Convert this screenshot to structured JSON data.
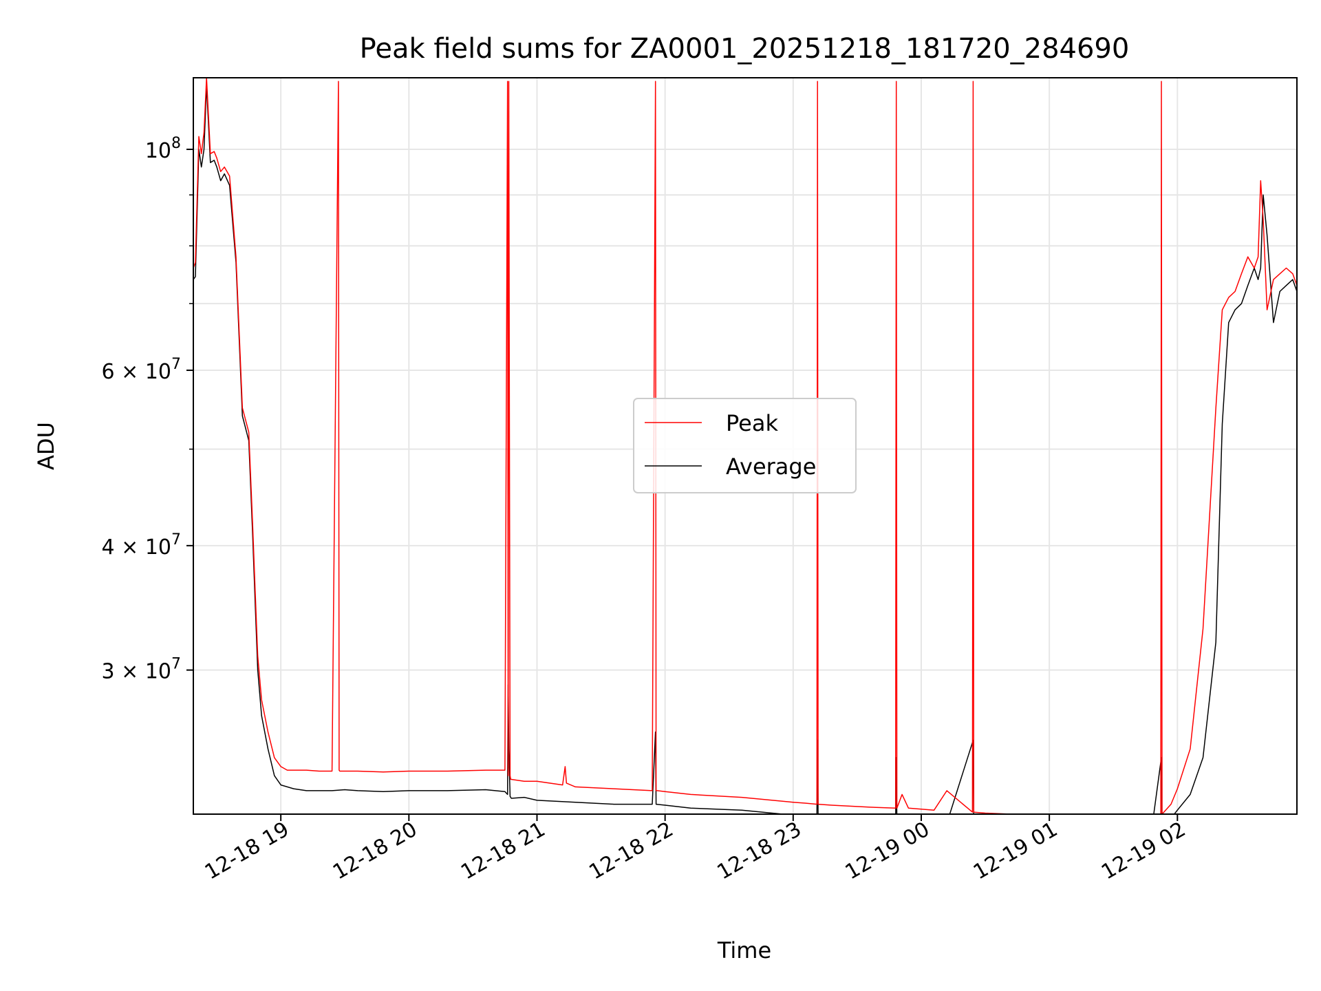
{
  "chart_data": {
    "type": "line",
    "title": "Peak field sums for ZA0001_20251218_181720_284690",
    "xlabel": "Time",
    "ylabel": "ADU",
    "yscale": "log",
    "ylim": [
      21500000,
      118000000
    ],
    "xlim_hours": [
      18.317,
      26.933
    ],
    "grid": true,
    "legend_location": "center",
    "x_ticks": [
      {
        "hour": 19,
        "label": "12-18 19"
      },
      {
        "hour": 20,
        "label": "12-18 20"
      },
      {
        "hour": 21,
        "label": "12-18 21"
      },
      {
        "hour": 22,
        "label": "12-18 22"
      },
      {
        "hour": 23,
        "label": "12-18 23"
      },
      {
        "hour": 24,
        "label": "12-19 00"
      },
      {
        "hour": 25,
        "label": "12-19 01"
      },
      {
        "hour": 26,
        "label": "12-19 02"
      }
    ],
    "y_ticks": [
      {
        "value": 100000000,
        "base": "10",
        "exp": "8",
        "label": "10^8"
      },
      {
        "value": 60000000,
        "mant": "6 × ",
        "base": "10",
        "exp": "7",
        "label": "6 × 10^7"
      },
      {
        "value": 40000000,
        "mant": "4 × ",
        "base": "10",
        "exp": "7",
        "label": "4 × 10^7"
      },
      {
        "value": 30000000,
        "mant": "3 × ",
        "base": "10",
        "exp": "7",
        "label": "3 × 10^7"
      }
    ],
    "y_minor_ticks": [
      90000000,
      80000000,
      70000000,
      50000000
    ],
    "series": [
      {
        "name": "Peak",
        "color": "#ff0000",
        "x_hours": [
          18.317,
          18.333,
          18.36,
          18.38,
          18.4,
          18.42,
          18.45,
          18.48,
          18.5,
          18.53,
          18.56,
          18.6,
          18.65,
          18.7,
          18.75,
          18.78,
          18.8,
          18.82,
          18.85,
          18.9,
          18.95,
          19.0,
          19.05,
          19.1,
          19.15,
          19.2,
          19.3,
          19.4,
          19.45,
          19.455,
          19.46,
          19.5,
          19.6,
          19.8,
          20.0,
          20.3,
          20.6,
          20.75,
          20.77,
          20.775,
          20.78,
          20.79,
          20.795,
          20.8,
          20.9,
          21.0,
          21.2,
          21.22,
          21.23,
          21.3,
          21.6,
          21.9,
          21.925,
          21.93,
          21.94,
          22.0,
          22.2,
          22.6,
          23.0,
          23.1,
          23.185,
          23.19,
          23.195,
          23.3,
          23.6,
          23.8,
          23.805,
          23.81,
          23.85,
          23.9,
          24.0,
          24.1,
          24.2,
          24.4,
          24.405,
          24.41,
          24.5,
          24.7,
          24.9,
          25.1,
          25.2,
          25.4,
          25.5,
          25.6,
          25.7,
          25.75,
          25.8,
          25.85,
          25.87,
          25.875,
          25.88,
          25.95,
          26.0,
          26.1,
          26.2,
          26.3,
          26.35,
          26.4,
          26.45,
          26.5,
          26.55,
          26.6,
          26.63,
          26.65,
          26.67,
          26.7,
          26.75,
          26.8,
          26.85,
          26.9,
          26.933
        ],
        "values": [
          76000000,
          77000000,
          103000000,
          99000000,
          104000000,
          118000000,
          99000000,
          99500000,
          98000000,
          95000000,
          96000000,
          94000000,
          78000000,
          55000000,
          52000000,
          42000000,
          36000000,
          31000000,
          28000000,
          26000000,
          24500000,
          24000000,
          23800000,
          23800000,
          23800000,
          23800000,
          23750000,
          23750000,
          117000000,
          23800000,
          23750000,
          23750000,
          23750000,
          23700000,
          23750000,
          23750000,
          23800000,
          23800000,
          117000000,
          23500000,
          117000000,
          23500000,
          23300000,
          23300000,
          23200000,
          23200000,
          23000000,
          24000000,
          23100000,
          22900000,
          22800000,
          22700000,
          117000000,
          22700000,
          22700000,
          22650000,
          22500000,
          22350000,
          22100000,
          22050000,
          22000000,
          117000000,
          22000000,
          21950000,
          21850000,
          21800000,
          117000000,
          21800000,
          22500000,
          21800000,
          21750000,
          21700000,
          22700000,
          21600000,
          117000000,
          21600000,
          21550000,
          21500000,
          21450000,
          21400000,
          21450000,
          21350000,
          21300000,
          21350000,
          21300000,
          21280000,
          21300000,
          21400000,
          21400000,
          117000000,
          21500000,
          22000000,
          22800000,
          25000000,
          33000000,
          55000000,
          69000000,
          71000000,
          72000000,
          75000000,
          78000000,
          76000000,
          78000000,
          93000000,
          85000000,
          69000000,
          74000000,
          75000000,
          76000000,
          75000000,
          73000000
        ]
      },
      {
        "name": "Average",
        "color": "#000000",
        "x_hours": [
          18.317,
          18.333,
          18.36,
          18.38,
          18.4,
          18.42,
          18.45,
          18.48,
          18.5,
          18.53,
          18.56,
          18.6,
          18.65,
          18.7,
          18.75,
          18.78,
          18.8,
          18.82,
          18.85,
          18.9,
          18.95,
          19.0,
          19.1,
          19.2,
          19.3,
          19.4,
          19.5,
          19.6,
          19.8,
          20.0,
          20.3,
          20.6,
          20.75,
          20.77,
          20.775,
          20.78,
          20.79,
          20.8,
          20.9,
          21.0,
          21.3,
          21.6,
          21.9,
          21.925,
          21.93,
          22.0,
          22.2,
          22.6,
          23.0,
          23.185,
          23.19,
          23.195,
          23.3,
          23.6,
          23.8,
          23.805,
          23.81,
          24.0,
          24.2,
          24.405,
          24.41,
          24.6,
          24.8,
          25.0,
          25.2,
          25.4,
          25.6,
          25.8,
          25.875,
          25.88,
          25.95,
          26.0,
          26.1,
          26.2,
          26.3,
          26.35,
          26.4,
          26.45,
          26.5,
          26.55,
          26.6,
          26.63,
          26.65,
          26.67,
          26.7,
          26.75,
          26.8,
          26.85,
          26.9,
          26.933
        ],
        "values": [
          74000000,
          74500000,
          100000000,
          96000000,
          100000000,
          116000000,
          97000000,
          97500000,
          96000000,
          93000000,
          94500000,
          92000000,
          77000000,
          54000000,
          51000000,
          41000000,
          35000000,
          30000000,
          27000000,
          25000000,
          23500000,
          23000000,
          22800000,
          22700000,
          22700000,
          22700000,
          22750000,
          22700000,
          22650000,
          22700000,
          22700000,
          22750000,
          22650000,
          22500000,
          29000000,
          25000000,
          22400000,
          22300000,
          22350000,
          22200000,
          22100000,
          22000000,
          22000000,
          26000000,
          22000000,
          21950000,
          21800000,
          21700000,
          21450000,
          21350000,
          25500000,
          21350000,
          21300000,
          21200000,
          21150000,
          24500000,
          21150000,
          21100000,
          21050000,
          25500000,
          21000000,
          20950000,
          20900000,
          20850000,
          20800000,
          20800000,
          20750000,
          20800000,
          24500000,
          21000000,
          21300000,
          21700000,
          22500000,
          24500000,
          32000000,
          53000000,
          67000000,
          69000000,
          70000000,
          73000000,
          76000000,
          74000000,
          76000000,
          90000000,
          82000000,
          67000000,
          72000000,
          73000000,
          74000000,
          72000000
        ]
      }
    ]
  }
}
